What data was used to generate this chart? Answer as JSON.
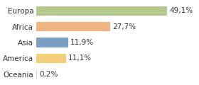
{
  "categories": [
    "Europa",
    "Africa",
    "Asia",
    "America",
    "Oceania"
  ],
  "values": [
    49.1,
    27.7,
    11.9,
    11.1,
    0.2
  ],
  "labels": [
    "49,1%",
    "27,7%",
    "11,9%",
    "11,1%",
    "0,2%"
  ],
  "bar_colors": [
    "#b5c98e",
    "#f0b482",
    "#7b9ec4",
    "#f5d07a",
    "#d3d3d3"
  ],
  "background_color": "#ffffff",
  "xlim": [
    0,
    60
  ],
  "bar_height": 0.6,
  "label_fontsize": 7.5,
  "tick_fontsize": 7.5
}
